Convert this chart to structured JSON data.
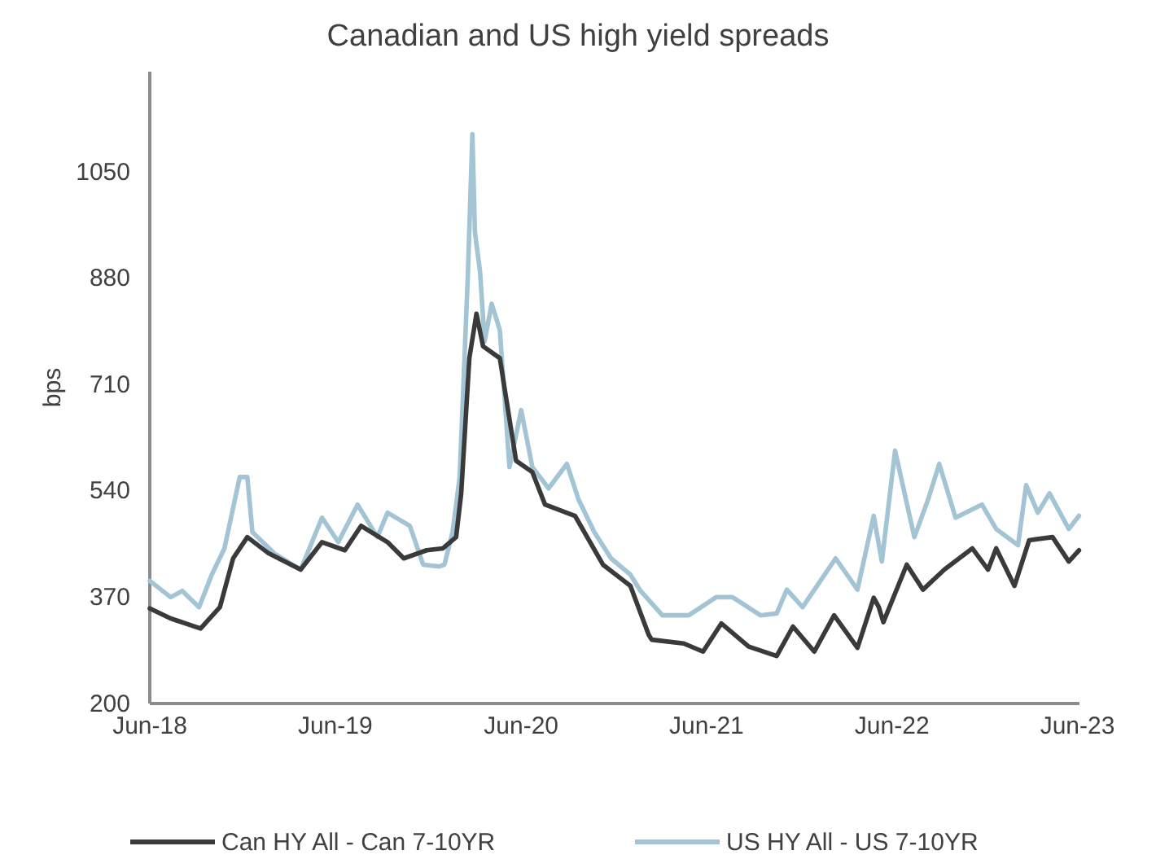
{
  "chart_data": {
    "type": "line",
    "title": "Canadian and US high yield spreads",
    "ylabel": "bps",
    "xlim": [
      "2018-06-01",
      "2023-06-05"
    ],
    "ylim": [
      200,
      1210
    ],
    "xticks": [
      {
        "value": "2018-06-01",
        "label": "Jun-18"
      },
      {
        "value": "2019-06-01",
        "label": "Jun-19"
      },
      {
        "value": "2020-06-01",
        "label": "Jun-20"
      },
      {
        "value": "2021-06-01",
        "label": "Jun-21"
      },
      {
        "value": "2022-06-01",
        "label": "Jun-22"
      },
      {
        "value": "2023-06-01",
        "label": "Jun-23"
      }
    ],
    "yticks": [
      200,
      370,
      540,
      710,
      880,
      1050
    ],
    "grid": false,
    "legend": "bottom",
    "marker": "none",
    "line_style": "solid",
    "series": [
      {
        "name": "Can HY All - Can 7-10YR",
        "color": "#3a3a3a",
        "x": [
          "2018-06-01",
          "2018-07-12",
          "2018-09-09",
          "2018-10-17",
          "2018-11-12",
          "2018-12-10",
          "2019-01-21",
          "2019-03-25",
          "2019-05-06",
          "2019-06-20",
          "2019-07-22",
          "2019-09-12",
          "2019-10-14",
          "2019-11-28",
          "2019-12-30",
          "2020-01-25",
          "2020-02-04",
          "2020-02-20",
          "2020-03-05",
          "2020-03-18",
          "2020-04-20",
          "2020-05-22",
          "2020-06-23",
          "2020-07-18",
          "2020-09-15",
          "2020-11-09",
          "2021-01-02",
          "2021-02-07",
          "2021-02-13",
          "2021-04-17",
          "2021-05-25",
          "2021-06-30",
          "2021-08-23",
          "2021-10-17",
          "2021-11-18",
          "2021-12-30",
          "2022-02-07",
          "2022-03-25",
          "2022-04-26",
          "2022-05-06",
          "2022-05-15",
          "2022-06-30",
          "2022-08-01",
          "2022-09-12",
          "2022-11-06",
          "2022-12-07",
          "2022-12-23",
          "2023-01-28",
          "2023-02-26",
          "2023-04-13",
          "2023-05-15",
          "2023-06-04"
        ],
        "values": [
          352,
          336,
          320,
          354,
          432,
          466,
          440,
          414,
          458,
          445,
          484,
          458,
          432,
          445,
          448,
          466,
          536,
          752,
          823,
          771,
          752,
          588,
          570,
          518,
          500,
          422,
          388,
          310,
          302,
          296,
          283,
          328,
          291,
          276,
          323,
          283,
          341,
          289,
          369,
          354,
          330,
          422,
          382,
          414,
          448,
          414,
          448,
          388,
          461,
          466,
          427,
          445
        ]
      },
      {
        "name": "US HY All - US 7-10YR",
        "color": "#a2c4d5",
        "x": [
          "2018-06-01",
          "2018-07-12",
          "2018-08-04",
          "2018-09-06",
          "2018-10-01",
          "2018-10-26",
          "2018-11-25",
          "2018-12-10",
          "2018-12-20",
          "2019-02-01",
          "2019-03-25",
          "2019-05-06",
          "2019-06-07",
          "2019-07-15",
          "2019-08-23",
          "2019-09-12",
          "2019-10-26",
          "2019-11-21",
          "2019-12-23",
          "2020-01-02",
          "2020-01-18",
          "2020-02-01",
          "2020-02-17",
          "2020-02-26",
          "2020-03-02",
          "2020-03-12",
          "2020-03-21",
          "2020-04-04",
          "2020-04-20",
          "2020-05-09",
          "2020-06-01",
          "2020-06-23",
          "2020-07-25",
          "2020-08-30",
          "2020-09-22",
          "2020-10-23",
          "2020-11-25",
          "2021-01-02",
          "2021-01-22",
          "2021-03-06",
          "2021-04-27",
          "2021-06-20",
          "2021-07-22",
          "2021-09-15",
          "2021-10-17",
          "2021-11-06",
          "2021-12-07",
          "2022-02-10",
          "2022-03-25",
          "2022-04-26",
          "2022-05-12",
          "2022-06-07",
          "2022-07-15",
          "2022-08-11",
          "2022-09-02",
          "2022-10-04",
          "2022-11-25",
          "2022-12-23",
          "2023-02-04",
          "2023-02-20",
          "2023-03-15",
          "2023-04-07",
          "2023-05-15",
          "2023-06-04"
        ],
        "values": [
          396,
          370,
          380,
          354,
          406,
          448,
          562,
          562,
          474,
          440,
          414,
          497,
          458,
          518,
          466,
          505,
          484,
          422,
          419,
          422,
          474,
          562,
          883,
          1110,
          953,
          891,
          779,
          839,
          797,
          578,
          669,
          578,
          544,
          583,
          526,
          474,
          432,
          406,
          380,
          341,
          341,
          370,
          370,
          341,
          344,
          382,
          354,
          432,
          382,
          500,
          427,
          604,
          466,
          526,
          583,
          497,
          518,
          479,
          453,
          549,
          505,
          536,
          479,
          500
        ]
      }
    ]
  }
}
